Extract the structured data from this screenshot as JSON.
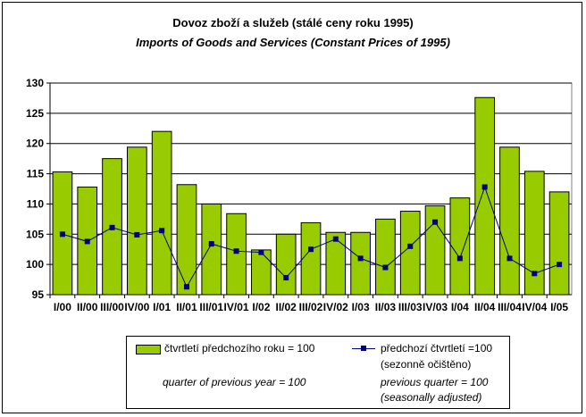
{
  "chart_data": {
    "type": "bar",
    "title": "Dovoz zboží a služeb (stálé ceny roku 1995)",
    "subtitle": "Imports of Goods and Services (Constant Prices of 1995)",
    "categories": [
      "I/00",
      "II/00",
      "III/00",
      "IV/00",
      "I/01",
      "II/01",
      "III/01",
      "IV/01",
      "I/02",
      "II/02",
      "III/02",
      "IV/02",
      "I/03",
      "II/03",
      "III/03",
      "IV/03",
      "I/04",
      "II/04",
      "III/04",
      "IV/04",
      "I/05"
    ],
    "ylim": [
      95,
      130
    ],
    "yticks": [
      "95",
      "100",
      "105",
      "110",
      "115",
      "120",
      "125",
      "130"
    ],
    "grid": true,
    "series": [
      {
        "name": "čtvrtletí předchozího roku = 100",
        "name_en": "quarter of previous year = 100",
        "type": "bar",
        "color": "#99cc00",
        "values": [
          115.3,
          112.8,
          117.5,
          119.4,
          122.0,
          113.2,
          110.0,
          108.4,
          102.4,
          105.0,
          106.9,
          105.3,
          105.3,
          107.5,
          108.8,
          109.7,
          111.0,
          127.6,
          119.4,
          115.4,
          112.0
        ]
      },
      {
        "name": "předchozí čtvrtletí =100",
        "name_line2": "(sezonně očištěno)",
        "name_en": "previous quarter = 100",
        "name_en_line2": "(seasonally adjusted)",
        "type": "line",
        "color": "#000080",
        "values": [
          105.0,
          103.8,
          106.1,
          104.9,
          105.6,
          96.3,
          103.4,
          102.2,
          102.0,
          97.8,
          102.5,
          104.2,
          101.0,
          99.5,
          103.0,
          107.0,
          101.0,
          112.8,
          101.0,
          98.5,
          100.0
        ]
      }
    ],
    "legend_position": "bottom"
  }
}
